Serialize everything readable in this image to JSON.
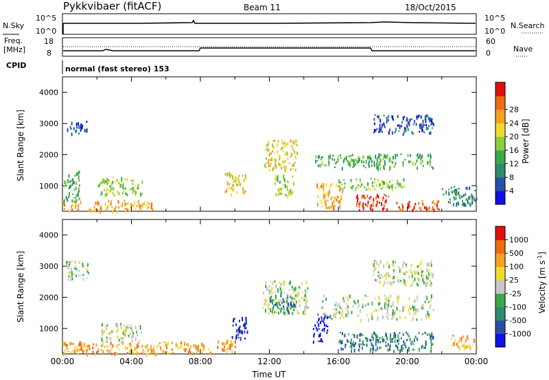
{
  "header": {
    "station": "Pykkvibaer (fitACF)",
    "beam": "Beam 11",
    "date": "18/Oct/2015"
  },
  "strip_nsky": {
    "label": "N.Sky",
    "left_ticks": [
      "10^5",
      "10^0"
    ],
    "right_ticks": [
      "10^5",
      "10^0"
    ],
    "right_label": "N.Search"
  },
  "strip_freq": {
    "label_lines": [
      "Freq.",
      "[MHz]"
    ],
    "left_ticks": [
      "18",
      "8"
    ],
    "right_ticks": [
      "60",
      "0"
    ],
    "right_label": "Nave",
    "cpid_label": "CPID",
    "cpid_text": "normal (fast stereo) 153"
  },
  "chart_data": [
    {
      "type": "heatmap",
      "title": "",
      "ylabel": "Slant Range [km]",
      "xlabel": "",
      "y_ticks": [
        "1000",
        "2000",
        "3000",
        "4000"
      ],
      "ylim": [
        180,
        4500
      ],
      "x_ticks": [],
      "xlim_hours": [
        0,
        24
      ],
      "colorbar": {
        "label": "Power [dB]",
        "ticks": [
          "4",
          "8",
          "12",
          "16",
          "20",
          "24",
          "28"
        ],
        "colors": [
          "#1010e8",
          "#2850a8",
          "#2f8a6e",
          "#3aa848",
          "#8ccd3c",
          "#f0dc30",
          "#f5a020",
          "#f06a10",
          "#e01010"
        ]
      },
      "regions": [
        {
          "t0": 0.0,
          "t1": 5.2,
          "r0": 200,
          "r1": 550,
          "level": 6
        },
        {
          "t0": 0.0,
          "t1": 1.0,
          "r0": 500,
          "r1": 1500,
          "level": 3
        },
        {
          "t0": 0.2,
          "t1": 1.4,
          "r0": 2700,
          "r1": 3100,
          "level": 1
        },
        {
          "t0": 2.0,
          "t1": 4.6,
          "r0": 700,
          "r1": 1300,
          "level": 4
        },
        {
          "t0": 9.4,
          "t1": 10.6,
          "r0": 750,
          "r1": 1500,
          "level": 5
        },
        {
          "t0": 11.7,
          "t1": 13.6,
          "r0": 1500,
          "r1": 2500,
          "level": 5
        },
        {
          "t0": 12.2,
          "t1": 13.4,
          "r0": 700,
          "r1": 1400,
          "level": 4
        },
        {
          "t0": 14.6,
          "t1": 21.5,
          "r0": 1600,
          "r1": 2050,
          "level": 3
        },
        {
          "t0": 14.7,
          "t1": 16.2,
          "r0": 300,
          "r1": 1100,
          "level": 6
        },
        {
          "t0": 16.0,
          "t1": 19.8,
          "r0": 900,
          "r1": 1250,
          "level": 4
        },
        {
          "t0": 17.0,
          "t1": 19.0,
          "r0": 250,
          "r1": 750,
          "level": 8
        },
        {
          "t0": 18.0,
          "t1": 21.5,
          "r0": 2700,
          "r1": 3300,
          "level": 1
        },
        {
          "t0": 19.3,
          "t1": 21.8,
          "r0": 250,
          "r1": 550,
          "level": 7
        },
        {
          "t0": 22.0,
          "t1": 24.0,
          "r0": 400,
          "r1": 1000,
          "level": 2
        }
      ]
    },
    {
      "type": "heatmap",
      "title": "",
      "ylabel": "Slant Range [km]",
      "xlabel": "Time UT",
      "y_ticks": [
        "1000",
        "2000",
        "3000",
        "4000"
      ],
      "ylim": [
        180,
        4500
      ],
      "x_ticks": [
        "00:00",
        "04:00",
        "08:00",
        "12:00",
        "16:00",
        "20:00",
        "00:00"
      ],
      "xlim_hours": [
        0,
        24
      ],
      "colorbar": {
        "label_text": "Velocity  [m s",
        "label_sup": "-1",
        "label_close": "]",
        "ticks": [
          "1000",
          "500",
          "100",
          "25",
          "-25",
          "-100",
          "-500",
          "-1000"
        ],
        "colors": [
          "#1010e8",
          "#2850a8",
          "#2f8a6e",
          "#3aa848",
          "#c8c8c8",
          "#f0dc30",
          "#f5a020",
          "#f06a10",
          "#e01010"
        ]
      },
      "regions": [
        {
          "t0": 0.0,
          "t1": 8.6,
          "r0": 200,
          "r1": 600,
          "level": 6
        },
        {
          "t0": 2.2,
          "t1": 4.6,
          "r0": 600,
          "r1": 1200,
          "level": 4
        },
        {
          "t0": 0.2,
          "t1": 1.5,
          "r0": 2600,
          "r1": 3200,
          "level": 4
        },
        {
          "t0": 8.8,
          "t1": 10.0,
          "r0": 300,
          "r1": 650,
          "level": 6
        },
        {
          "t0": 9.8,
          "t1": 10.7,
          "r0": 700,
          "r1": 1400,
          "level": 0
        },
        {
          "t0": 11.6,
          "t1": 14.2,
          "r0": 1500,
          "r1": 2550,
          "level": 4
        },
        {
          "t0": 12.0,
          "t1": 13.5,
          "r0": 1500,
          "r1": 2100,
          "level": 2
        },
        {
          "t0": 14.5,
          "t1": 15.4,
          "r0": 600,
          "r1": 1500,
          "level": 0
        },
        {
          "t0": 15.0,
          "t1": 21.5,
          "r0": 1300,
          "r1": 2100,
          "level": 4
        },
        {
          "t0": 16.0,
          "t1": 21.5,
          "r0": 300,
          "r1": 900,
          "level": 2
        },
        {
          "t0": 18.0,
          "t1": 21.5,
          "r0": 2400,
          "r1": 3200,
          "level": 4
        },
        {
          "t0": 22.4,
          "t1": 24.0,
          "r0": 400,
          "r1": 800,
          "level": 6
        }
      ]
    }
  ]
}
